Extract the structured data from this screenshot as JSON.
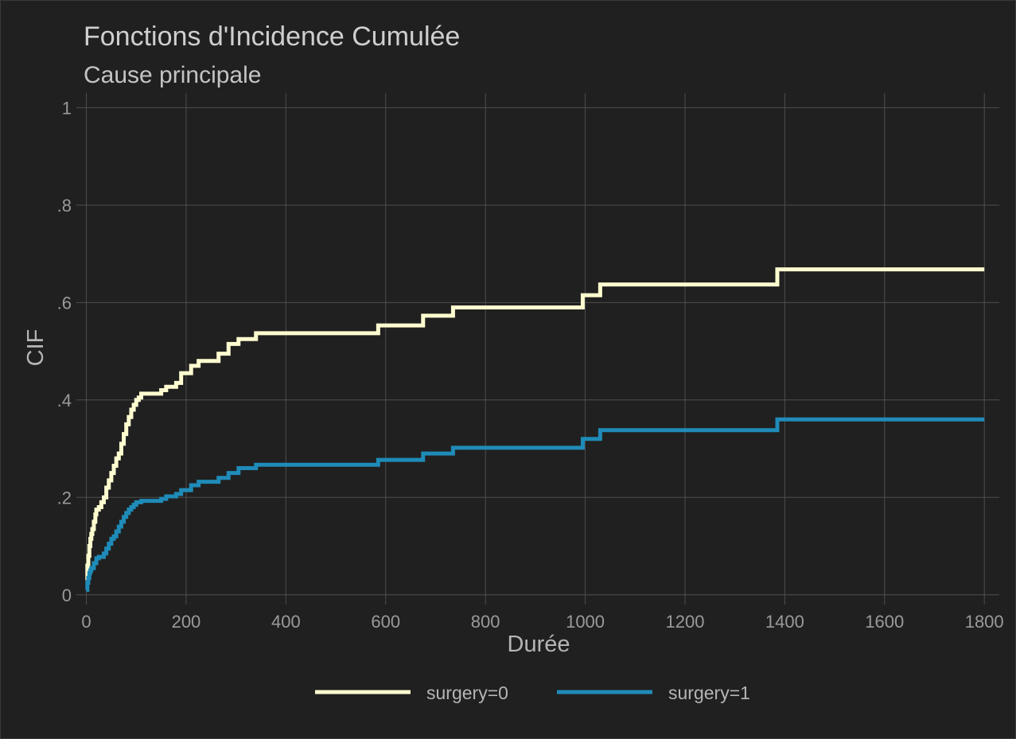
{
  "chart_data": {
    "type": "line",
    "title": "Fonctions d'Incidence Cumulée",
    "subtitle": "Cause principale",
    "xlabel": "Durée",
    "ylabel": "CIF",
    "xlim": [
      -20,
      1830
    ],
    "ylim": [
      -0.02,
      1.03
    ],
    "x_ticks": [
      0,
      200,
      400,
      600,
      800,
      1000,
      1200,
      1400,
      1600,
      1800
    ],
    "x_tick_labels": [
      "0",
      "200",
      "400",
      "600",
      "800",
      "1000",
      "1200",
      "1400",
      "1600",
      "1800"
    ],
    "y_ticks": [
      0,
      0.2,
      0.4,
      0.6,
      0.8,
      1
    ],
    "y_tick_labels": [
      "0",
      ".2",
      ".4",
      ".6",
      ".8",
      "1"
    ],
    "grid": true,
    "step": true,
    "legend_position": "bottom",
    "series": [
      {
        "name": "surgery=0",
        "color": "#fffdd0",
        "x": [
          0,
          2,
          4,
          6,
          8,
          10,
          12,
          15,
          18,
          20,
          25,
          30,
          35,
          40,
          45,
          50,
          55,
          60,
          65,
          70,
          75,
          80,
          85,
          90,
          95,
          100,
          105,
          110,
          150,
          160,
          180,
          190,
          210,
          225,
          265,
          285,
          305,
          340,
          585,
          675,
          735,
          995,
          1030,
          1385,
          1800
        ],
        "y": [
          0.03,
          0.06,
          0.08,
          0.1,
          0.115,
          0.125,
          0.135,
          0.15,
          0.165,
          0.175,
          0.18,
          0.19,
          0.2,
          0.22,
          0.235,
          0.25,
          0.265,
          0.28,
          0.29,
          0.31,
          0.33,
          0.35,
          0.365,
          0.38,
          0.39,
          0.4,
          0.405,
          0.413,
          0.42,
          0.427,
          0.435,
          0.455,
          0.47,
          0.48,
          0.495,
          0.515,
          0.525,
          0.537,
          0.553,
          0.573,
          0.59,
          0.615,
          0.637,
          0.668,
          0.668
        ]
      },
      {
        "name": "surgery=1",
        "color": "#1f8bb8",
        "x": [
          0,
          2,
          4,
          6,
          8,
          10,
          15,
          20,
          25,
          35,
          40,
          45,
          50,
          55,
          60,
          65,
          70,
          75,
          80,
          85,
          90,
          95,
          100,
          110,
          150,
          160,
          180,
          190,
          210,
          225,
          265,
          285,
          305,
          340,
          585,
          675,
          735,
          995,
          1030,
          1385,
          1800
        ],
        "y": [
          0.01,
          0.025,
          0.035,
          0.045,
          0.05,
          0.055,
          0.065,
          0.075,
          0.078,
          0.085,
          0.095,
          0.105,
          0.115,
          0.12,
          0.13,
          0.14,
          0.15,
          0.16,
          0.168,
          0.175,
          0.18,
          0.185,
          0.19,
          0.193,
          0.197,
          0.202,
          0.207,
          0.215,
          0.225,
          0.232,
          0.24,
          0.25,
          0.26,
          0.267,
          0.277,
          0.29,
          0.302,
          0.32,
          0.338,
          0.36,
          0.36
        ]
      }
    ]
  }
}
